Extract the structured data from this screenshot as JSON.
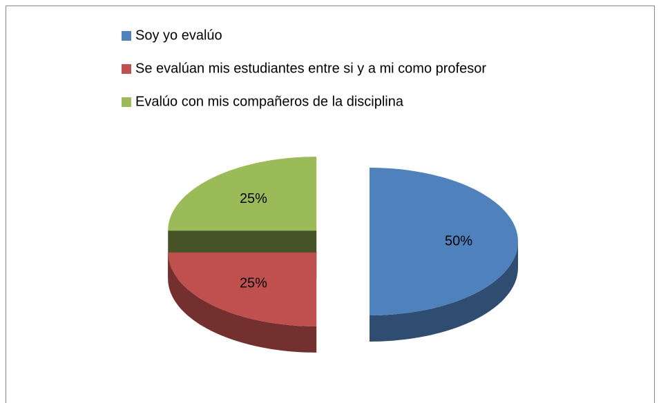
{
  "chart_data": {
    "type": "pie3d",
    "categories": [
      "Soy yo evalúo",
      "Se evalúan mis estudiantes entre si y a mi como profesor",
      "Evalúo con mis compañeros de la disciplina"
    ],
    "values": [
      50,
      25,
      25
    ],
    "value_labels": [
      "50%",
      "25%",
      "25%"
    ],
    "colors": [
      "#4f81bd",
      "#c0504d",
      "#9bbb59"
    ],
    "legend": "top"
  }
}
